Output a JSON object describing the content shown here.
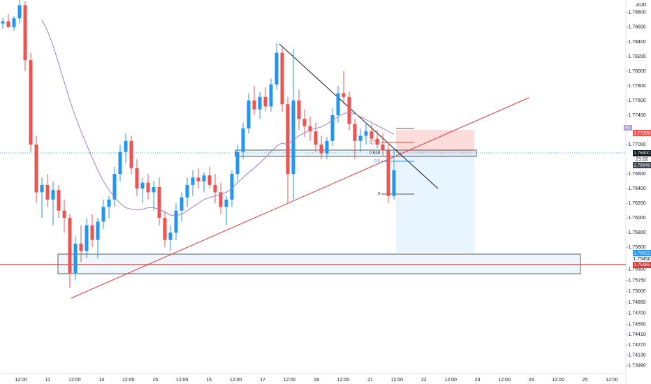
{
  "chart_data": {
    "type": "candlestick",
    "currency": "AUD",
    "up_color": "#2196f3",
    "down_color": "#ef5350",
    "ma_color": "#9c7fd0",
    "ylim": [
      1.7388,
      1.7897
    ],
    "yticks": [
      {
        "value": 1.788,
        "label": "1.78800"
      },
      {
        "value": 1.786,
        "label": "1.78600"
      },
      {
        "value": 1.784,
        "label": "1.78400"
      },
      {
        "value": 1.782,
        "label": "1.78200"
      },
      {
        "value": 1.78,
        "label": "1.78000"
      },
      {
        "value": 1.778,
        "label": "1.77800"
      },
      {
        "value": 1.776,
        "label": "1.77600"
      },
      {
        "value": 1.774,
        "label": "1.77400"
      },
      {
        "value": 1.77,
        "label": "1.77000"
      },
      {
        "value": 1.766,
        "label": "1.76600"
      },
      {
        "value": 1.764,
        "label": "1.76400"
      },
      {
        "value": 1.762,
        "label": "1.76200"
      },
      {
        "value": 1.76,
        "label": "1.76000"
      },
      {
        "value": 1.758,
        "label": "1.75800"
      },
      {
        "value": 1.756,
        "label": "1.75600"
      },
      {
        "value": 1.753,
        "label": "1.75300"
      },
      {
        "value": 1.7515,
        "label": "1.75150"
      },
      {
        "value": 1.75,
        "label": "1.75000"
      },
      {
        "value": 1.7485,
        "label": "1.74850"
      },
      {
        "value": 1.747,
        "label": "1.74700"
      },
      {
        "value": 1.7455,
        "label": "1.74550"
      },
      {
        "value": 1.7441,
        "label": "1.74410"
      },
      {
        "value": 1.7427,
        "label": "1.74270"
      },
      {
        "value": 1.7413,
        "label": "1.74130"
      },
      {
        "value": 1.7399,
        "label": "1.73990"
      }
    ],
    "time_labels": [
      "12:00",
      "11",
      "12:00",
      "14",
      "12:00",
      "15",
      "12:00",
      "16",
      "12:00",
      "17",
      "12:00",
      "18",
      "12:00",
      "21",
      "12:00",
      "22",
      "12:00",
      "23",
      "12:00",
      "24",
      "12:00",
      "25",
      "12:00"
    ],
    "ohlc": [
      [
        1.7865,
        1.7872,
        1.7858,
        1.7868
      ],
      [
        1.7868,
        1.7878,
        1.7862,
        1.786
      ],
      [
        1.786,
        1.7875,
        1.7855,
        1.7872
      ],
      [
        1.7872,
        1.7897,
        1.7865,
        1.789
      ],
      [
        1.789,
        1.7895,
        1.78,
        1.7815
      ],
      [
        1.7815,
        1.7825,
        1.769,
        1.77
      ],
      [
        1.77,
        1.7712,
        1.762,
        1.7635
      ],
      [
        1.7635,
        1.7655,
        1.76,
        1.7645
      ],
      [
        1.7645,
        1.766,
        1.7615,
        1.7625
      ],
      [
        1.7625,
        1.765,
        1.759,
        1.7638
      ],
      [
        1.7638,
        1.7645,
        1.76,
        1.761
      ],
      [
        1.761,
        1.7625,
        1.758,
        1.76
      ],
      [
        1.76,
        1.7605,
        1.7505,
        1.7525
      ],
      [
        1.7525,
        1.7575,
        1.7515,
        1.7565
      ],
      [
        1.7565,
        1.759,
        1.754,
        1.7555
      ],
      [
        1.7555,
        1.76,
        1.7545,
        1.759
      ],
      [
        1.759,
        1.7605,
        1.756,
        1.757
      ],
      [
        1.757,
        1.76,
        1.7545,
        1.7595
      ],
      [
        1.7595,
        1.7625,
        1.7585,
        1.7615
      ],
      [
        1.7615,
        1.763,
        1.76,
        1.7625
      ],
      [
        1.7625,
        1.767,
        1.7615,
        1.766
      ],
      [
        1.766,
        1.77,
        1.765,
        1.769
      ],
      [
        1.769,
        1.7715,
        1.7675,
        1.7705
      ],
      [
        1.7705,
        1.7712,
        1.766,
        1.7668
      ],
      [
        1.7668,
        1.768,
        1.763,
        1.764
      ],
      [
        1.764,
        1.7655,
        1.762,
        1.7648
      ],
      [
        1.7648,
        1.766,
        1.7625,
        1.7635
      ],
      [
        1.7635,
        1.765,
        1.761,
        1.7642
      ],
      [
        1.7642,
        1.7655,
        1.759,
        1.76
      ],
      [
        1.76,
        1.761,
        1.756,
        1.757
      ],
      [
        1.757,
        1.759,
        1.7555,
        1.758
      ],
      [
        1.758,
        1.762,
        1.757,
        1.761
      ],
      [
        1.761,
        1.7635,
        1.7595,
        1.7628
      ],
      [
        1.7628,
        1.7655,
        1.7615,
        1.7645
      ],
      [
        1.7645,
        1.7665,
        1.763,
        1.7655
      ],
      [
        1.7655,
        1.7668,
        1.764,
        1.765
      ],
      [
        1.765,
        1.7662,
        1.7635,
        1.7658
      ],
      [
        1.7658,
        1.767,
        1.764,
        1.7645
      ],
      [
        1.7645,
        1.766,
        1.762,
        1.7635
      ],
      [
        1.7635,
        1.7648,
        1.7605,
        1.7615
      ],
      [
        1.7615,
        1.763,
        1.759,
        1.7625
      ],
      [
        1.7625,
        1.7665,
        1.7615,
        1.766
      ],
      [
        1.766,
        1.77,
        1.765,
        1.769
      ],
      [
        1.769,
        1.773,
        1.768,
        1.7722
      ],
      [
        1.7722,
        1.777,
        1.7715,
        1.776
      ],
      [
        1.776,
        1.778,
        1.774,
        1.7748
      ],
      [
        1.7748,
        1.7772,
        1.7735,
        1.7765
      ],
      [
        1.7765,
        1.7778,
        1.7745,
        1.7752
      ],
      [
        1.7752,
        1.779,
        1.7745,
        1.7782
      ],
      [
        1.7782,
        1.7838,
        1.7775,
        1.7825
      ],
      [
        1.7825,
        1.7832,
        1.7745,
        1.7755
      ],
      [
        1.7755,
        1.7765,
        1.762,
        1.766
      ],
      [
        1.766,
        1.783,
        1.7625,
        1.776
      ],
      [
        1.776,
        1.7775,
        1.772,
        1.7735
      ],
      [
        1.7735,
        1.7748,
        1.771,
        1.7725
      ],
      [
        1.7725,
        1.7738,
        1.7705,
        1.7718
      ],
      [
        1.7718,
        1.773,
        1.769,
        1.77
      ],
      [
        1.77,
        1.7712,
        1.768,
        1.7688
      ],
      [
        1.7688,
        1.771,
        1.768,
        1.7705
      ],
      [
        1.7705,
        1.775,
        1.7698,
        1.774
      ],
      [
        1.774,
        1.778,
        1.773,
        1.777
      ],
      [
        1.777,
        1.78,
        1.7755,
        1.7765
      ],
      [
        1.7765,
        1.7772,
        1.772,
        1.7728
      ],
      [
        1.7728,
        1.7735,
        1.768,
        1.7705
      ],
      [
        1.7705,
        1.7722,
        1.769,
        1.7712
      ],
      [
        1.7712,
        1.773,
        1.77,
        1.7718
      ],
      [
        1.7718,
        1.7728,
        1.77,
        1.7708
      ],
      [
        1.7708,
        1.772,
        1.7695,
        1.77
      ],
      [
        1.77,
        1.7715,
        1.7685,
        1.7692
      ],
      [
        1.7692,
        1.7702,
        1.762,
        1.763
      ],
      [
        1.763,
        1.7695,
        1.7625,
        1.7665
      ]
    ],
    "ma": [
      null,
      null,
      null,
      null,
      null,
      null,
      null,
      1.787,
      1.7855,
      1.7835,
      1.781,
      1.7785,
      1.776,
      1.7738,
      1.7718,
      1.77,
      1.7682,
      1.7665,
      1.765,
      1.7638,
      1.7628,
      1.762,
      1.7614,
      1.7612,
      1.7611,
      1.7612,
      1.7614,
      1.7614,
      1.7612,
      1.7608,
      1.7604,
      1.7603,
      1.7605,
      1.761,
      1.7615,
      1.762,
      1.7625,
      1.7628,
      1.763,
      1.7632,
      1.7635,
      1.764,
      1.7648,
      1.7655,
      1.7662,
      1.7668,
      1.7675,
      1.7682,
      1.769,
      1.7698,
      1.7702,
      1.77,
      1.7706,
      1.7712,
      1.7716,
      1.772,
      1.7722,
      1.7724,
      1.7728,
      1.7733,
      1.7738,
      1.7742,
      1.7744,
      1.7742,
      1.7738,
      1.7734,
      1.773,
      1.7726,
      1.7722,
      1.7718,
      1.7714
    ],
    "ma_label": "MA",
    "fib_labels": [
      "0.786",
      "0.618",
      "0.5",
      "0"
    ],
    "price_labels": [
      "1.77206",
      "1.76900",
      "21:02",
      "1.76648",
      "1.75522",
      "1.75450",
      "1.75385"
    ]
  }
}
